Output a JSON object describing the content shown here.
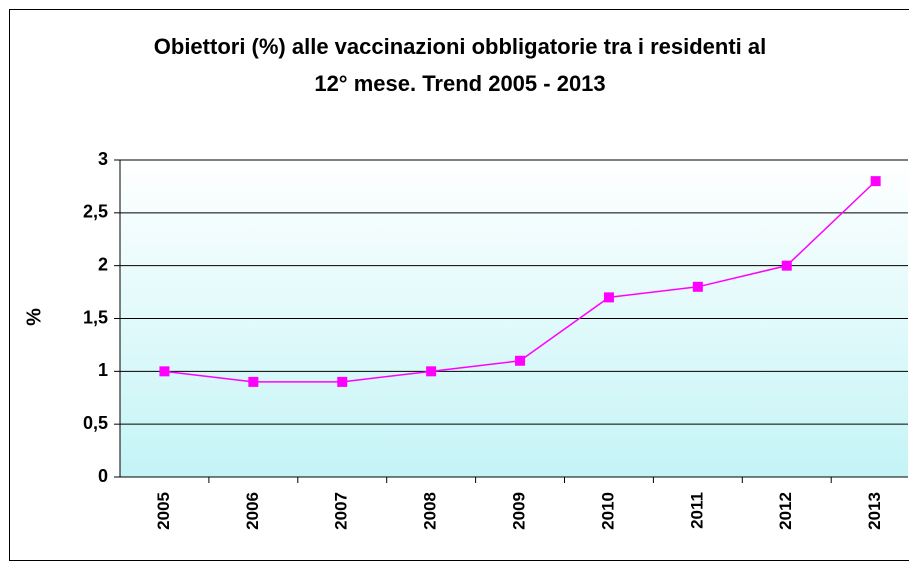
{
  "chart_data": {
    "type": "line",
    "title": "Obiettori (%) alle vaccinazioni obbligatorie tra i residenti al 12° mese. Trend 2005 - 2013",
    "y_label": "%",
    "categories": [
      "2005",
      "2006",
      "2007",
      "2008",
      "2009",
      "2010",
      "2011",
      "2012",
      "2013"
    ],
    "series": [
      {
        "name": "Obiettori",
        "color": "#ff00ff",
        "values": [
          1,
          0.9,
          0.9,
          1,
          1.1,
          1.7,
          1.8,
          2,
          2.8
        ]
      }
    ],
    "ylim": [
      0,
      3
    ],
    "yticks": [
      0,
      {
        "value": 0.5,
        "label": "0,5"
      },
      1,
      {
        "value": 1.5,
        "label": "1,5"
      },
      2,
      {
        "value": 2.5,
        "label": "2,5"
      },
      3
    ],
    "grid": true
  }
}
